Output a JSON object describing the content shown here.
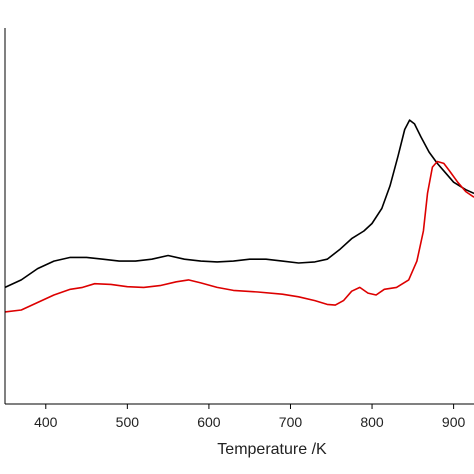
{
  "chart_data": {
    "type": "line",
    "title": "",
    "xlabel": "Temperature /K",
    "ylabel": "",
    "xlim": [
      350,
      925
    ],
    "ylim": [
      0,
      1
    ],
    "x_ticks": [
      400,
      500,
      600,
      700,
      800,
      900
    ],
    "grid": false,
    "legend": "none",
    "series": [
      {
        "color": "#000000",
        "points": [
          [
            350,
            0.31
          ],
          [
            370,
            0.33
          ],
          [
            390,
            0.36
          ],
          [
            410,
            0.38
          ],
          [
            430,
            0.39
          ],
          [
            450,
            0.39
          ],
          [
            470,
            0.385
          ],
          [
            490,
            0.38
          ],
          [
            510,
            0.38
          ],
          [
            530,
            0.385
          ],
          [
            550,
            0.395
          ],
          [
            570,
            0.385
          ],
          [
            590,
            0.38
          ],
          [
            610,
            0.378
          ],
          [
            630,
            0.38
          ],
          [
            650,
            0.385
          ],
          [
            670,
            0.385
          ],
          [
            690,
            0.38
          ],
          [
            710,
            0.375
          ],
          [
            730,
            0.378
          ],
          [
            745,
            0.385
          ],
          [
            760,
            0.41
          ],
          [
            775,
            0.44
          ],
          [
            790,
            0.46
          ],
          [
            800,
            0.48
          ],
          [
            812,
            0.52
          ],
          [
            822,
            0.58
          ],
          [
            832,
            0.66
          ],
          [
            840,
            0.73
          ],
          [
            846,
            0.755
          ],
          [
            852,
            0.745
          ],
          [
            860,
            0.71
          ],
          [
            870,
            0.67
          ],
          [
            880,
            0.64
          ],
          [
            890,
            0.615
          ],
          [
            900,
            0.59
          ],
          [
            915,
            0.57
          ],
          [
            925,
            0.56
          ]
        ]
      },
      {
        "color": "#dd0000",
        "points": [
          [
            350,
            0.245
          ],
          [
            370,
            0.25
          ],
          [
            390,
            0.27
          ],
          [
            410,
            0.29
          ],
          [
            430,
            0.305
          ],
          [
            445,
            0.31
          ],
          [
            460,
            0.32
          ],
          [
            480,
            0.318
          ],
          [
            500,
            0.312
          ],
          [
            520,
            0.31
          ],
          [
            540,
            0.315
          ],
          [
            560,
            0.325
          ],
          [
            575,
            0.33
          ],
          [
            590,
            0.322
          ],
          [
            610,
            0.31
          ],
          [
            630,
            0.302
          ],
          [
            660,
            0.298
          ],
          [
            690,
            0.292
          ],
          [
            710,
            0.285
          ],
          [
            730,
            0.275
          ],
          [
            745,
            0.265
          ],
          [
            755,
            0.263
          ],
          [
            765,
            0.275
          ],
          [
            775,
            0.3
          ],
          [
            785,
            0.31
          ],
          [
            795,
            0.295
          ],
          [
            805,
            0.29
          ],
          [
            815,
            0.305
          ],
          [
            830,
            0.31
          ],
          [
            845,
            0.33
          ],
          [
            855,
            0.38
          ],
          [
            863,
            0.46
          ],
          [
            868,
            0.56
          ],
          [
            874,
            0.63
          ],
          [
            880,
            0.645
          ],
          [
            888,
            0.64
          ],
          [
            895,
            0.62
          ],
          [
            905,
            0.59
          ],
          [
            915,
            0.565
          ],
          [
            925,
            0.55
          ]
        ]
      }
    ]
  }
}
